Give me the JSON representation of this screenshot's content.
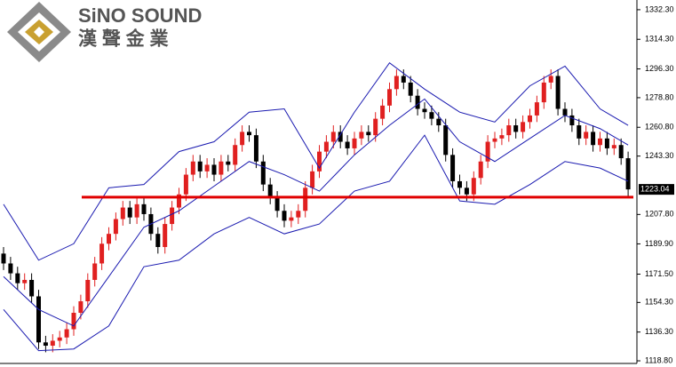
{
  "chart_data": {
    "type": "candlestick",
    "logo": {
      "brand": "SiNO SOUND",
      "subtitle": "漢 聲 金 業"
    },
    "ylim": [
      1117.2,
      1338.2
    ],
    "yticks": [
      {
        "value": 1118.8,
        "label": "1118.80"
      },
      {
        "value": 1136.3,
        "label": "1136.30"
      },
      {
        "value": 1154.3,
        "label": "1154.30"
      },
      {
        "value": 1171.5,
        "label": "1171.50"
      },
      {
        "value": 1189.9,
        "label": "1189.90"
      },
      {
        "value": 1207.8,
        "label": "1207.80"
      },
      {
        "value": 1243.3,
        "label": "1243.30"
      },
      {
        "value": 1260.8,
        "label": "1260.80"
      },
      {
        "value": 1278.8,
        "label": "1278.80"
      },
      {
        "value": 1296.3,
        "label": "1296.30"
      },
      {
        "value": 1314.3,
        "label": "1314.30"
      },
      {
        "value": 1332.3,
        "label": "1332.30"
      }
    ],
    "up_color": "#e02020",
    "down_color": "#000000",
    "candles": {
      "open": [
        1184,
        1178,
        1172,
        1166,
        1168,
        1158,
        1130,
        1128,
        1131,
        1133,
        1138,
        1148,
        1155,
        1168,
        1178,
        1190,
        1196,
        1205,
        1212,
        1206,
        1214,
        1208,
        1196,
        1188,
        1202,
        1212,
        1220,
        1232,
        1240,
        1234,
        1238,
        1232,
        1240,
        1238,
        1250,
        1258,
        1256,
        1240,
        1226,
        1218,
        1210,
        1204,
        1206,
        1210,
        1224,
        1234,
        1246,
        1252,
        1258,
        1252,
        1248,
        1254,
        1258,
        1256,
        1266,
        1274,
        1284,
        1292,
        1288,
        1280,
        1272,
        1270,
        1266,
        1262,
        1244,
        1228,
        1224,
        1220,
        1230,
        1240,
        1252,
        1254,
        1256,
        1262,
        1258,
        1264,
        1268,
        1276,
        1288,
        1292,
        1272,
        1268,
        1262,
        1254,
        1258,
        1250,
        1254,
        1248,
        1250,
        1242
      ],
      "high": [
        1188,
        1182,
        1176,
        1172,
        1172,
        1162,
        1134,
        1135,
        1137,
        1142,
        1152,
        1159,
        1172,
        1182,
        1194,
        1200,
        1209,
        1216,
        1216,
        1218,
        1218,
        1212,
        1200,
        1206,
        1216,
        1224,
        1236,
        1244,
        1244,
        1242,
        1242,
        1244,
        1244,
        1254,
        1262,
        1262,
        1260,
        1244,
        1230,
        1222,
        1214,
        1210,
        1214,
        1228,
        1238,
        1250,
        1256,
        1262,
        1262,
        1256,
        1258,
        1262,
        1262,
        1270,
        1278,
        1288,
        1296,
        1296,
        1292,
        1284,
        1276,
        1274,
        1270,
        1266,
        1248,
        1232,
        1228,
        1234,
        1244,
        1256,
        1258,
        1260,
        1266,
        1266,
        1268,
        1272,
        1280,
        1292,
        1296,
        1296,
        1276,
        1272,
        1266,
        1262,
        1262,
        1258,
        1258,
        1254,
        1254,
        1246
      ],
      "low": [
        1174,
        1168,
        1162,
        1162,
        1154,
        1126,
        1124,
        1124,
        1127,
        1129,
        1134,
        1144,
        1151,
        1164,
        1174,
        1186,
        1192,
        1201,
        1202,
        1202,
        1204,
        1192,
        1184,
        1184,
        1198,
        1208,
        1216,
        1228,
        1230,
        1230,
        1228,
        1228,
        1234,
        1234,
        1246,
        1252,
        1236,
        1222,
        1214,
        1206,
        1200,
        1200,
        1202,
        1206,
        1220,
        1230,
        1242,
        1248,
        1248,
        1244,
        1244,
        1250,
        1252,
        1252,
        1262,
        1270,
        1280,
        1284,
        1276,
        1268,
        1266,
        1262,
        1258,
        1240,
        1224,
        1220,
        1216,
        1216,
        1226,
        1236,
        1248,
        1250,
        1252,
        1254,
        1254,
        1260,
        1264,
        1272,
        1284,
        1268,
        1264,
        1258,
        1250,
        1250,
        1246,
        1246,
        1244,
        1244,
        1238,
        1219
      ],
      "close": [
        1178,
        1172,
        1166,
        1168,
        1158,
        1130,
        1128,
        1131,
        1133,
        1138,
        1148,
        1155,
        1168,
        1178,
        1190,
        1196,
        1205,
        1212,
        1206,
        1214,
        1208,
        1196,
        1188,
        1202,
        1212,
        1220,
        1232,
        1240,
        1234,
        1238,
        1232,
        1240,
        1238,
        1250,
        1258,
        1256,
        1240,
        1226,
        1218,
        1210,
        1204,
        1206,
        1210,
        1224,
        1234,
        1246,
        1252,
        1258,
        1252,
        1248,
        1254,
        1258,
        1256,
        1266,
        1274,
        1284,
        1292,
        1288,
        1280,
        1272,
        1270,
        1266,
        1262,
        1244,
        1228,
        1224,
        1220,
        1230,
        1240,
        1252,
        1254,
        1256,
        1262,
        1258,
        1264,
        1268,
        1276,
        1288,
        1292,
        1272,
        1268,
        1262,
        1254,
        1258,
        1250,
        1254,
        1248,
        1250,
        1242,
        1223.04
      ]
    },
    "bands": {
      "color": "#1a1ab0",
      "x": [
        0,
        5,
        10,
        15,
        20,
        25,
        30,
        35,
        40,
        45,
        50,
        55,
        60,
        65,
        70,
        75,
        80,
        85,
        89
      ],
      "upper": [
        1214,
        1180,
        1190,
        1224,
        1226,
        1246,
        1252,
        1270,
        1272,
        1236,
        1270,
        1300,
        1284,
        1270,
        1264,
        1286,
        1298,
        1272,
        1262
      ],
      "middle": [
        1170,
        1150,
        1140,
        1170,
        1200,
        1210,
        1225,
        1240,
        1232,
        1222,
        1244,
        1262,
        1278,
        1252,
        1240,
        1254,
        1268,
        1260,
        1250
      ],
      "lower": [
        1150,
        1125,
        1126,
        1140,
        1176,
        1180,
        1196,
        1206,
        1196,
        1202,
        1222,
        1228,
        1256,
        1216,
        1214,
        1226,
        1240,
        1236,
        1228
      ]
    },
    "hline": {
      "value": 1218.3,
      "color": "#e00000"
    }
  }
}
